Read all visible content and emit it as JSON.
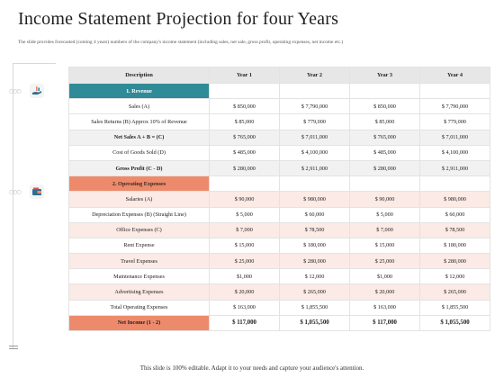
{
  "title": "Income Statement Projection for four Years",
  "subtitle": "The slide provides forecasted (coming 4 years) numbers of the company's income statement (including sales, net sale, gross profit, operating expenses, net income etc.)",
  "table": {
    "headers": [
      "Description",
      "Year 1",
      "Year 2",
      "Year 3",
      "Year 4"
    ],
    "revenue_section": "1. Revenue",
    "revenue_rows": [
      {
        "label": "Sales (A)",
        "values": [
          "$ 850,000",
          "$ 7,790,000",
          "$ 850,000",
          "$ 7,790,000"
        ]
      },
      {
        "label": "Sales Returns (B) Approx 10% of Revenue",
        "values": [
          "$ 85,000",
          "$ 779,000",
          "$ 85,000",
          "$ 779,000"
        ]
      },
      {
        "label": "Net Sales A + B = (C)",
        "values": [
          "$ 765,000",
          "$ 7,011,000",
          "$ 765,000",
          "$ 7,011,000"
        ]
      },
      {
        "label": "Cost of Goods Sold (D)",
        "values": [
          "$ 485,000",
          "$ 4,100,000",
          "$ 485,000",
          "$ 4,100,000"
        ]
      },
      {
        "label": "Gross Profit (C - D)",
        "values": [
          "$ 280,000",
          "$ 2,911,000",
          "$ 280,000",
          "$ 2,911,000"
        ]
      }
    ],
    "opex_section": "2. Operating Expenses",
    "opex_rows": [
      {
        "label": "Salaries (A)",
        "values": [
          "$ 90,000",
          "$ 980,000",
          "$ 90,000",
          "$ 980,000"
        ]
      },
      {
        "label": "Depreciation Expenses (B) (Straight Line)",
        "values": [
          "$ 5,000",
          "$ 60,000",
          "$ 5,000",
          "$ 60,000"
        ]
      },
      {
        "label": "Office Expenses (C)",
        "values": [
          "$ 7,000",
          "$ 78,500",
          "$ 7,000",
          "$ 78,500"
        ]
      },
      {
        "label": "Rent Expense",
        "values": [
          "$ 15,000",
          "$ 180,000",
          "$ 15,000",
          "$ 180,000"
        ]
      },
      {
        "label": "Travel Expenses",
        "values": [
          "$ 25,000",
          "$ 280,000",
          "$ 25,000",
          "$ 280,000"
        ]
      },
      {
        "label": "Maintenance Expenses",
        "values": [
          "$1,000",
          "$ 12,000",
          "$1,000",
          "$ 12,000"
        ]
      },
      {
        "label": "Advertising Expenses",
        "values": [
          "$ 20,000",
          "$ 265,000",
          "$ 20,000",
          "$ 265,000"
        ]
      },
      {
        "label": "Total Operating Expenses",
        "values": [
          "$ 163,000",
          "$ 1,855,500",
          "$ 163,000",
          "$ 1,855,500"
        ]
      }
    ],
    "net_income": {
      "label": "Net Income (1 - 2)",
      "values": [
        "$ 117,000",
        "$ 1,055,500",
        "$ 117,000",
        "$ 1,055,500"
      ]
    }
  },
  "footer": "This slide is 100% editable. Adapt it to your needs and capture your audience's attention.",
  "icons": {
    "revenue": "hand-money-icon",
    "expenses": "wallet-icon"
  },
  "colors": {
    "teal": "#2e8b97",
    "orange": "#ee8a6c",
    "pink": "#fbeae5"
  }
}
